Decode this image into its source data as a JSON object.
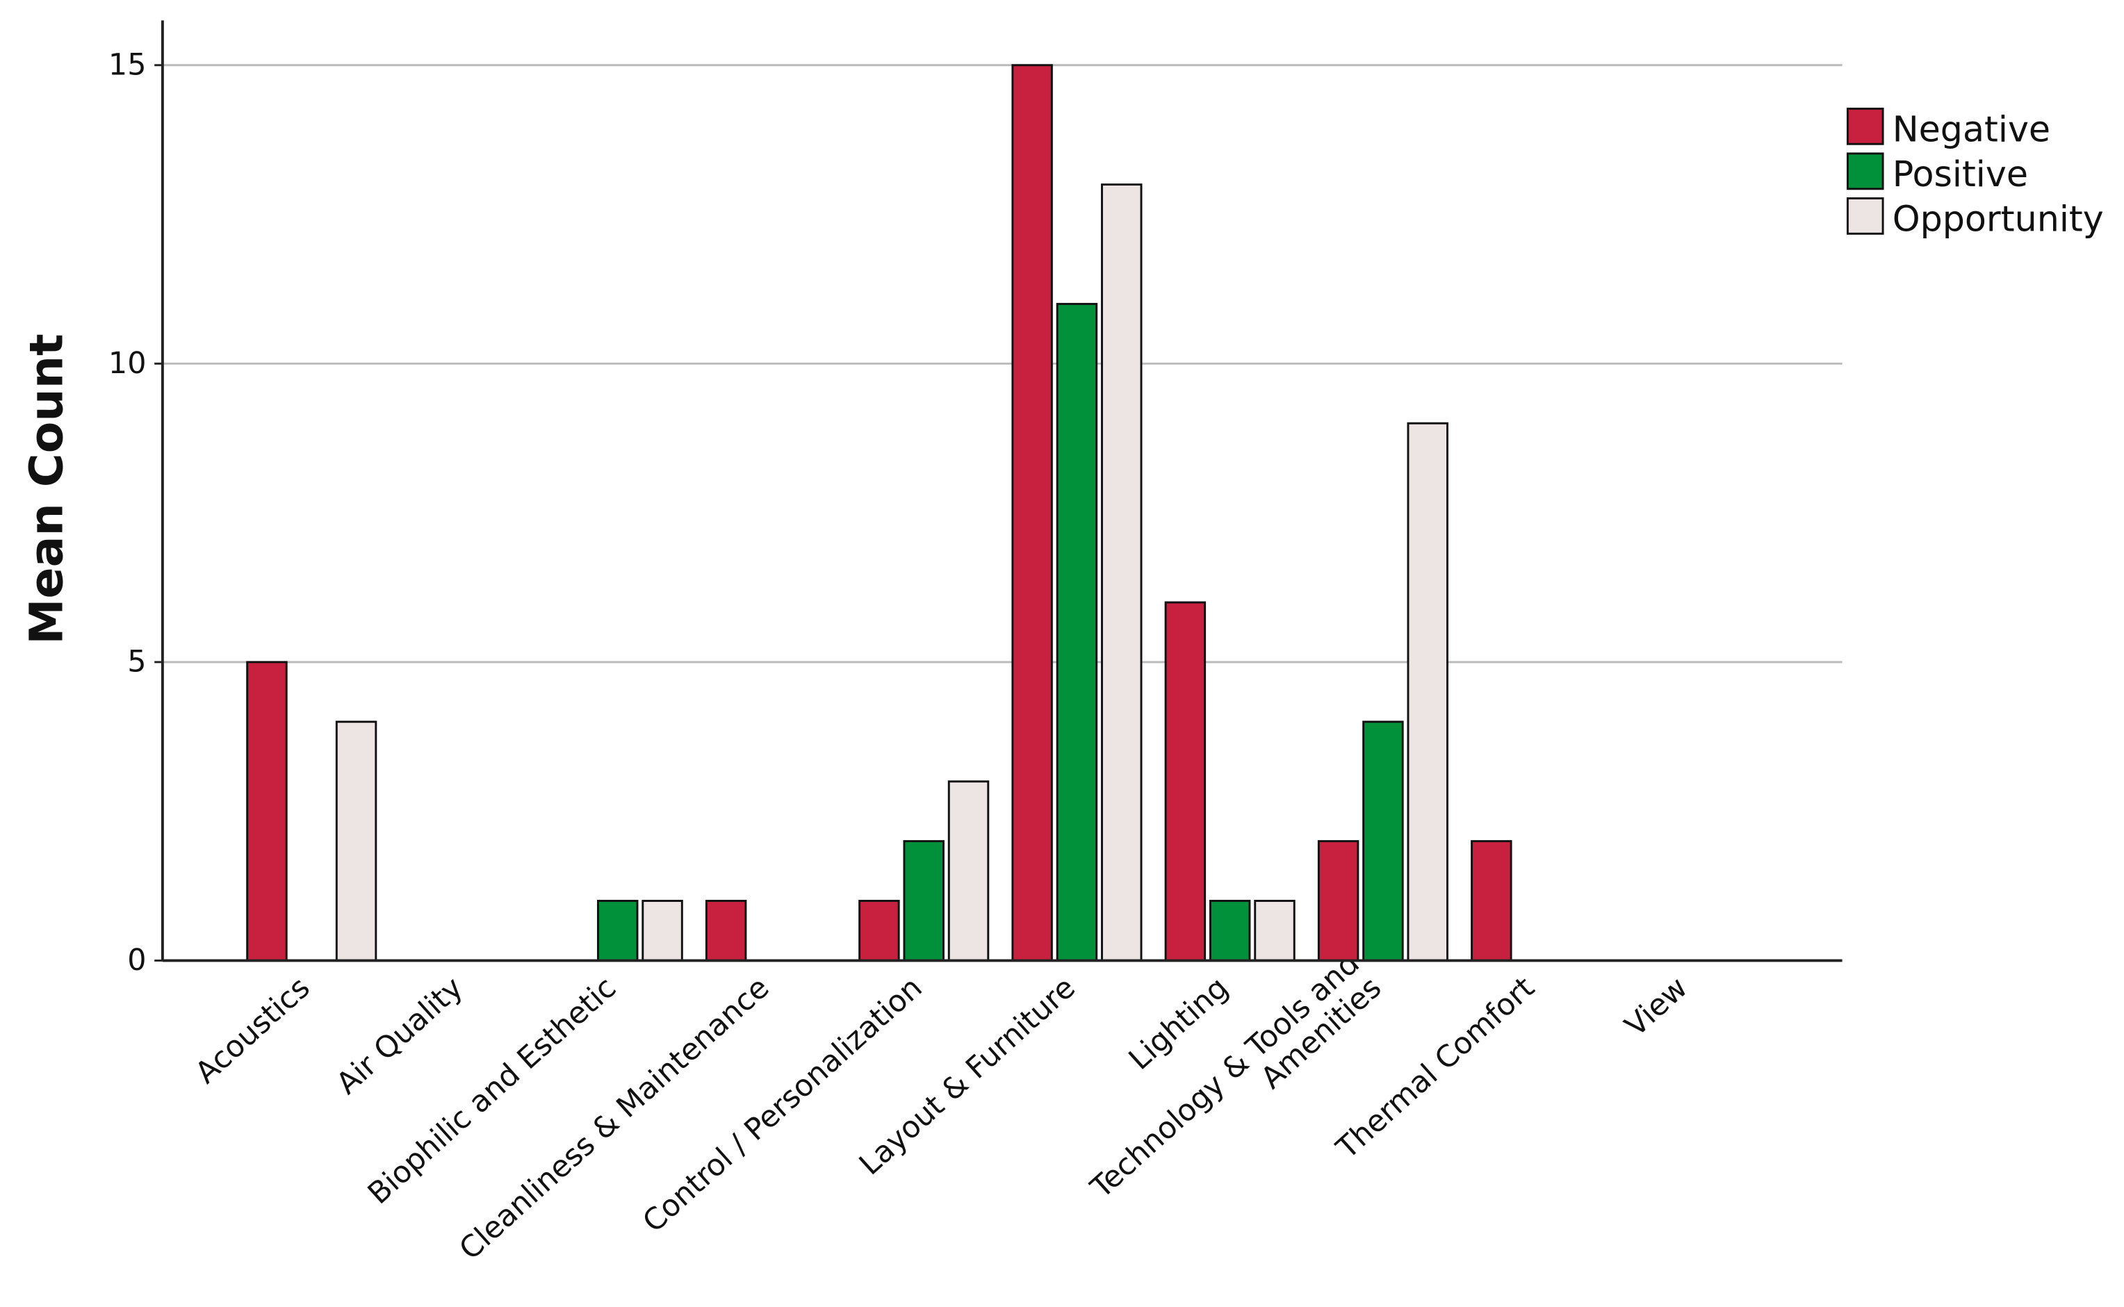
{
  "chart_data": {
    "type": "bar",
    "y_label": "Mean Count",
    "categories": [
      "Acoustics",
      "Air Quality",
      "Biophilic and Esthetic",
      "Cleanliness & Maintenance",
      "Control / Personalization",
      "Layout & Furniture",
      "Lighting",
      "Technology & Tools and\nAmenities",
      "Thermal Comfort",
      "View"
    ],
    "series": [
      {
        "name": "Negative",
        "color": "#c8203f",
        "values": [
          5,
          0,
          0,
          1,
          1,
          15,
          6,
          2,
          2,
          0
        ]
      },
      {
        "name": "Positive",
        "color": "#00913a",
        "values": [
          0,
          0,
          1,
          0,
          2,
          11,
          1,
          4,
          0,
          0
        ]
      },
      {
        "name": "Opportunity",
        "color": "#ede4e4",
        "values": [
          4,
          0,
          1,
          0,
          3,
          13,
          1,
          9,
          0,
          0
        ]
      }
    ],
    "ylim": [
      0,
      15.75
    ],
    "yticks": [
      0,
      5,
      10,
      15
    ],
    "grid": true,
    "legend": "right"
  }
}
